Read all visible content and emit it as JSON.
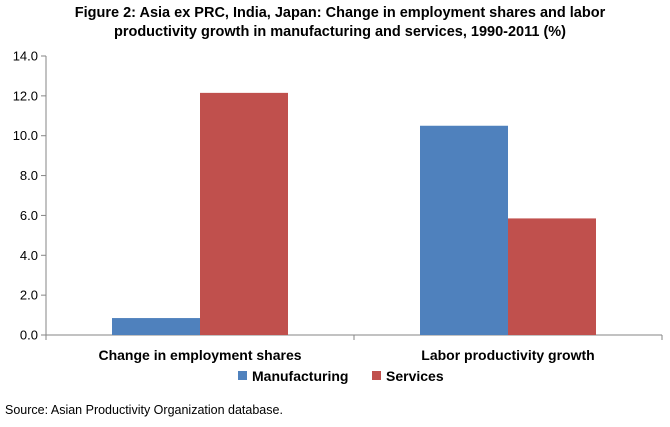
{
  "title_line1": "Figure 2: Asia ex PRC, India, Japan: Change in employment shares and labor",
  "title_line2": "productivity growth in manufacturing and services, 1990-2011 (%)",
  "source": "Source: Asian Productivity Organization database.",
  "chart_data": {
    "type": "bar",
    "title": "Figure 2: Asia ex PRC, India, Japan: Change in employment shares and labor productivity growth in manufacturing and services, 1990-2011 (%)",
    "categories": [
      "Change in employment shares",
      "Labor productivity growth"
    ],
    "series": [
      {
        "name": "Manufacturing",
        "values": [
          0.85,
          10.5
        ],
        "color": "#4f81bd"
      },
      {
        "name": "Services",
        "values": [
          12.15,
          5.85
        ],
        "color": "#c0504d"
      }
    ],
    "ylim": [
      0,
      14
    ],
    "yticks": [
      "0.0",
      "2.0",
      "4.0",
      "6.0",
      "8.0",
      "10.0",
      "12.0",
      "14.0"
    ],
    "grid": false,
    "legend_position": "bottom"
  }
}
